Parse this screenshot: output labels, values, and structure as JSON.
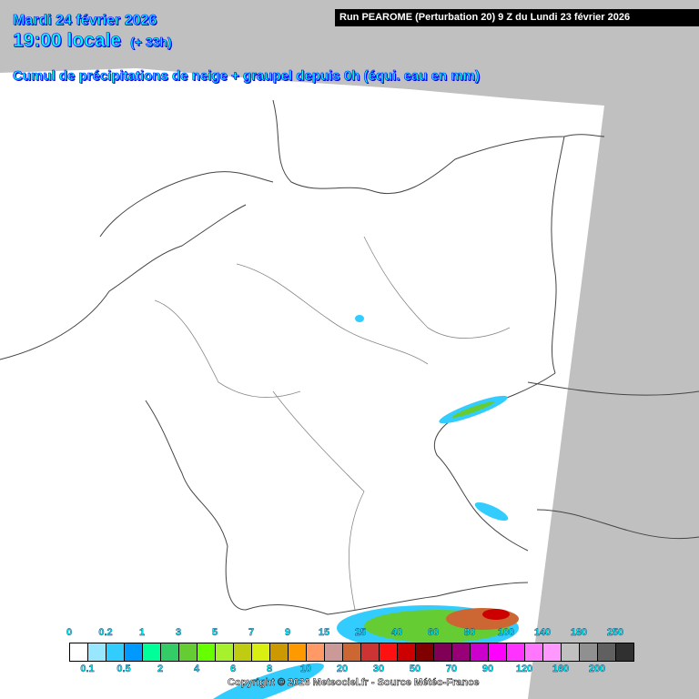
{
  "header": {
    "date": "Mardi 24 février 2026",
    "time": "19:00 locale",
    "lead": "(+ 33h)",
    "title": "Cumul de précipitations de neige + graupel depuis 0h (équi. eau en mm)",
    "run": "Run PEAROME (Perturbation 20) 9 Z du Lundi 23 février 2026"
  },
  "legend": {
    "labels": [
      "0",
      "0.1",
      "0.2",
      "0.5",
      "1",
      "2",
      "3",
      "4",
      "5",
      "6",
      "7",
      "8",
      "9",
      "10",
      "15",
      "20",
      "25",
      "30",
      "40",
      "50",
      "60",
      "70",
      "80",
      "90",
      "100",
      "120",
      "140",
      "160",
      "180",
      "200",
      "250"
    ],
    "colors": [
      "#ffffff",
      "#99e6ff",
      "#33ccff",
      "#0099ff",
      "#00ff99",
      "#33cc66",
      "#66cc33",
      "#66ff00",
      "#a6f02d",
      "#bfcc11",
      "#d9ee11",
      "#cc9900",
      "#ff9900",
      "#ff9966",
      "#cc9999",
      "#cc6633",
      "#cc3333",
      "#ff1111",
      "#cc0000",
      "#800000",
      "#800055",
      "#990077",
      "#cc00cc",
      "#ff00ff",
      "#ff33ff",
      "#ff77ff",
      "#ff99ff",
      "#c0c0c0",
      "#909090",
      "#606060",
      "#303030"
    ]
  },
  "copyright": "Copyright © 2026 Meteociel.fr - Source Météo-France"
}
